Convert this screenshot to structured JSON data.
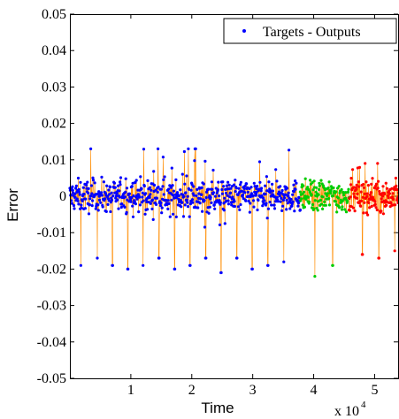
{
  "chart_data": {
    "type": "scatter",
    "title": "",
    "xlabel": "Time",
    "ylabel": "Error",
    "x_multiplier_label": "x 10",
    "x_multiplier_exponent": "4",
    "xlim": [
      0,
      54000
    ],
    "ylim": [
      -0.05,
      0.05
    ],
    "x_ticks": [
      10000,
      20000,
      30000,
      40000,
      50000
    ],
    "x_tick_labels": [
      "1",
      "2",
      "3",
      "4",
      "5"
    ],
    "y_ticks": [
      0.05,
      0.04,
      0.03,
      0.02,
      0.01,
      0,
      -0.01,
      -0.02,
      -0.03,
      -0.04,
      -0.05
    ],
    "y_tick_labels": [
      "0.05",
      "0.04",
      "0.03",
      "0.02",
      "0.01",
      "0",
      "-0.01",
      "-0.02",
      "-0.03",
      "-0.04",
      "-0.05"
    ],
    "grid": false,
    "legend": {
      "position": "top-right",
      "entries": [
        "Targets - Outputs"
      ]
    },
    "series": [
      {
        "name": "Targets - Outputs",
        "x_range": [
          0,
          37800
        ],
        "color": "#0000ff",
        "approx_range": [
          -0.021,
          0.013
        ]
      },
      {
        "x_range": [
          37800,
          45800
        ],
        "color": "#00cc00",
        "approx_range": [
          -0.023,
          0.011
        ]
      },
      {
        "x_range": [
          45800,
          54000
        ],
        "color": "#ff0000",
        "approx_range": [
          -0.017,
          0.009
        ]
      }
    ],
    "overlay_line_color": "#ff8c00",
    "dips": [
      {
        "x": 1800,
        "y": -0.019
      },
      {
        "x": 4500,
        "y": -0.017
      },
      {
        "x": 7000,
        "y": -0.019
      },
      {
        "x": 9500,
        "y": -0.02
      },
      {
        "x": 12000,
        "y": -0.019
      },
      {
        "x": 14600,
        "y": -0.017
      },
      {
        "x": 17200,
        "y": -0.02
      },
      {
        "x": 19700,
        "y": -0.019
      },
      {
        "x": 22300,
        "y": -0.017
      },
      {
        "x": 24800,
        "y": -0.022
      },
      {
        "x": 27400,
        "y": -0.017
      },
      {
        "x": 29900,
        "y": -0.02
      },
      {
        "x": 32500,
        "y": -0.019
      },
      {
        "x": 35100,
        "y": -0.018
      },
      {
        "x": 40200,
        "y": -0.022
      },
      {
        "x": 43100,
        "y": -0.019
      },
      {
        "x": 48000,
        "y": -0.016
      },
      {
        "x": 50700,
        "y": -0.017
      },
      {
        "x": 53300,
        "y": -0.015
      }
    ]
  }
}
